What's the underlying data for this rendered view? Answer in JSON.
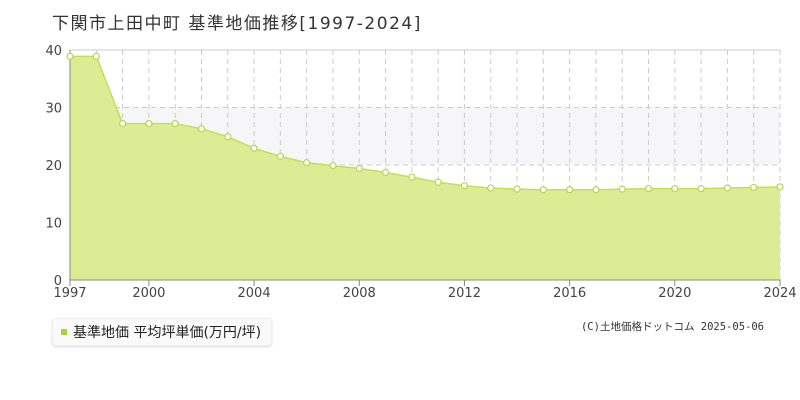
{
  "title": "下関市上田中町 基準地価推移[1997-2024]",
  "legend": {
    "label": "基準地価 平均坪単価(万円/坪)"
  },
  "source_note": "(C)土地価格ドットコム 2025-05-06",
  "colors": {
    "area_fill": "#dcec95",
    "line": "#c4df55",
    "marker_fill": "#ffffff",
    "marker_stroke": "#b9d64a",
    "band_fill": "#f6f5f7",
    "grid": "#cccccc",
    "axis": "#888888",
    "legend_swatch": "#a9d33b"
  },
  "chart_data": {
    "type": "area",
    "title": "下関市上田中町 基準地価推移[1997-2024]",
    "xlabel": "",
    "ylabel": "",
    "x": [
      1997,
      1998,
      1999,
      2000,
      2001,
      2002,
      2003,
      2004,
      2005,
      2006,
      2007,
      2008,
      2009,
      2010,
      2011,
      2012,
      2013,
      2014,
      2015,
      2016,
      2017,
      2018,
      2019,
      2020,
      2021,
      2022,
      2023,
      2024
    ],
    "series": [
      {
        "name": "基準地価 平均坪単価(万円/坪)",
        "values": [
          38.9,
          38.9,
          27.2,
          27.2,
          27.2,
          26.3,
          24.9,
          22.9,
          21.5,
          20.4,
          19.9,
          19.4,
          18.7,
          17.9,
          17.0,
          16.4,
          16.0,
          15.8,
          15.7,
          15.7,
          15.7,
          15.8,
          15.9,
          15.9,
          15.9,
          16.0,
          16.1,
          16.2
        ]
      }
    ],
    "x_ticks": [
      "1997",
      "2000",
      "2004",
      "2008",
      "2012",
      "2016",
      "2020",
      "2024"
    ],
    "y_ticks": [
      "0",
      "10",
      "20",
      "30",
      "40"
    ],
    "xlim": [
      1997,
      2024
    ],
    "ylim": [
      0,
      40
    ],
    "grid": true,
    "highlight_band": [
      20,
      30
    ],
    "legend_position": "bottom-left"
  }
}
